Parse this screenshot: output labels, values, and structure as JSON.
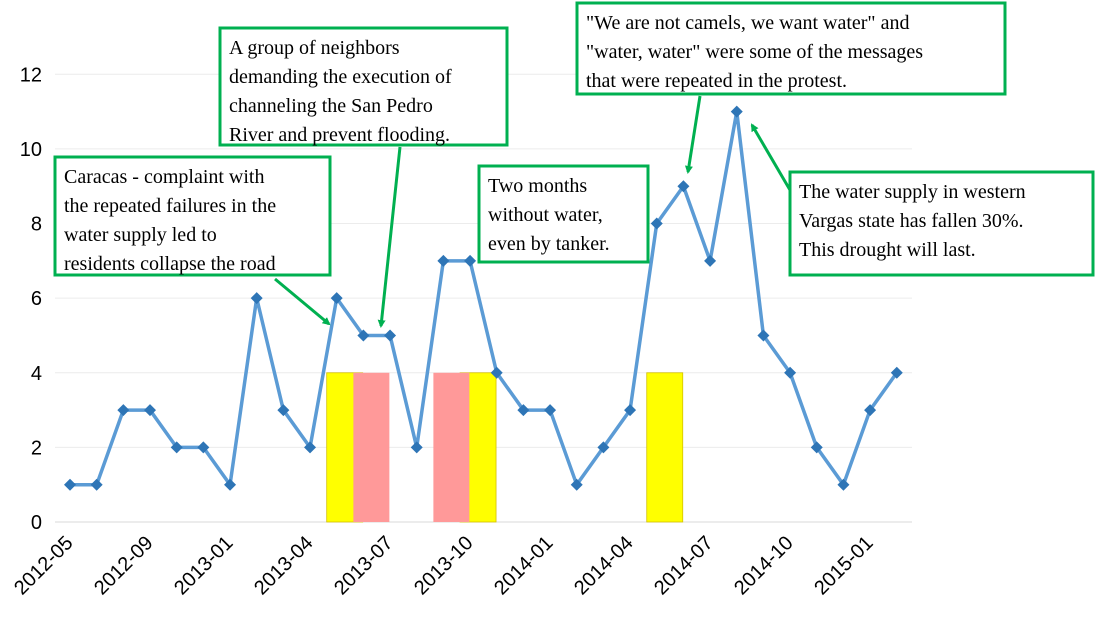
{
  "chart_data": {
    "type": "line",
    "categories": [
      "2012-05",
      null,
      null,
      "2012-09",
      null,
      null,
      "2013-01",
      null,
      null,
      "2013-04",
      null,
      null,
      "2013-07",
      null,
      null,
      "2013-10",
      null,
      null,
      "2014-01",
      null,
      null,
      "2014-04",
      null,
      null,
      "2014-07",
      null,
      null,
      "2014-10",
      null,
      null,
      "2015-01",
      null
    ],
    "series": [
      {
        "color": "#5b9bd5",
        "marker_color": "#2e75b6",
        "values": [
          1,
          1,
          3,
          3,
          2,
          2,
          1,
          6,
          3,
          2,
          6,
          5,
          5,
          2,
          7,
          7,
          4,
          3,
          3,
          1,
          2,
          3,
          8,
          9,
          7,
          11,
          5,
          4,
          2,
          1,
          3,
          4
        ]
      },
      {
        "type": "bar",
        "color": "#ffff00",
        "values": [
          null,
          null,
          null,
          null,
          null,
          null,
          null,
          null,
          null,
          null,
          4,
          null,
          null,
          null,
          null,
          4,
          null,
          null,
          null,
          null,
          null,
          null,
          4,
          null,
          null,
          null,
          null,
          null,
          null,
          null,
          null,
          null
        ]
      },
      {
        "type": "bar",
        "color": "#ff9999",
        "values": [
          null,
          null,
          null,
          null,
          null,
          null,
          null,
          null,
          null,
          null,
          null,
          4,
          null,
          null,
          4,
          null,
          null,
          null,
          null,
          null,
          null,
          null,
          null,
          null,
          null,
          null,
          null,
          null,
          null,
          null,
          null,
          null
        ]
      }
    ],
    "ylim": [
      0,
      13
    ],
    "yticks": [
      0,
      2,
      4,
      6,
      8,
      10,
      12
    ],
    "grid": true,
    "annotations": [
      {
        "lines": [
          "Caracas - complaint with",
          "the repeated failures in the",
          "water supply led to",
          "residents collapse the road"
        ]
      },
      {
        "lines": [
          "A group of neighbors",
          "demanding the execution of",
          "channeling the San Pedro",
          "River and prevent flooding."
        ]
      },
      {
        "lines": [
          "Two months",
          "without water,",
          "even by tanker."
        ]
      },
      {
        "lines": [
          "\"We are not camels, we want water\" and",
          "\"water, water\" were some of the messages",
          "that were repeated in the protest."
        ]
      },
      {
        "lines": [
          "The water supply in western",
          "Vargas state has fallen 30%.",
          "This drought will last."
        ]
      }
    ]
  }
}
